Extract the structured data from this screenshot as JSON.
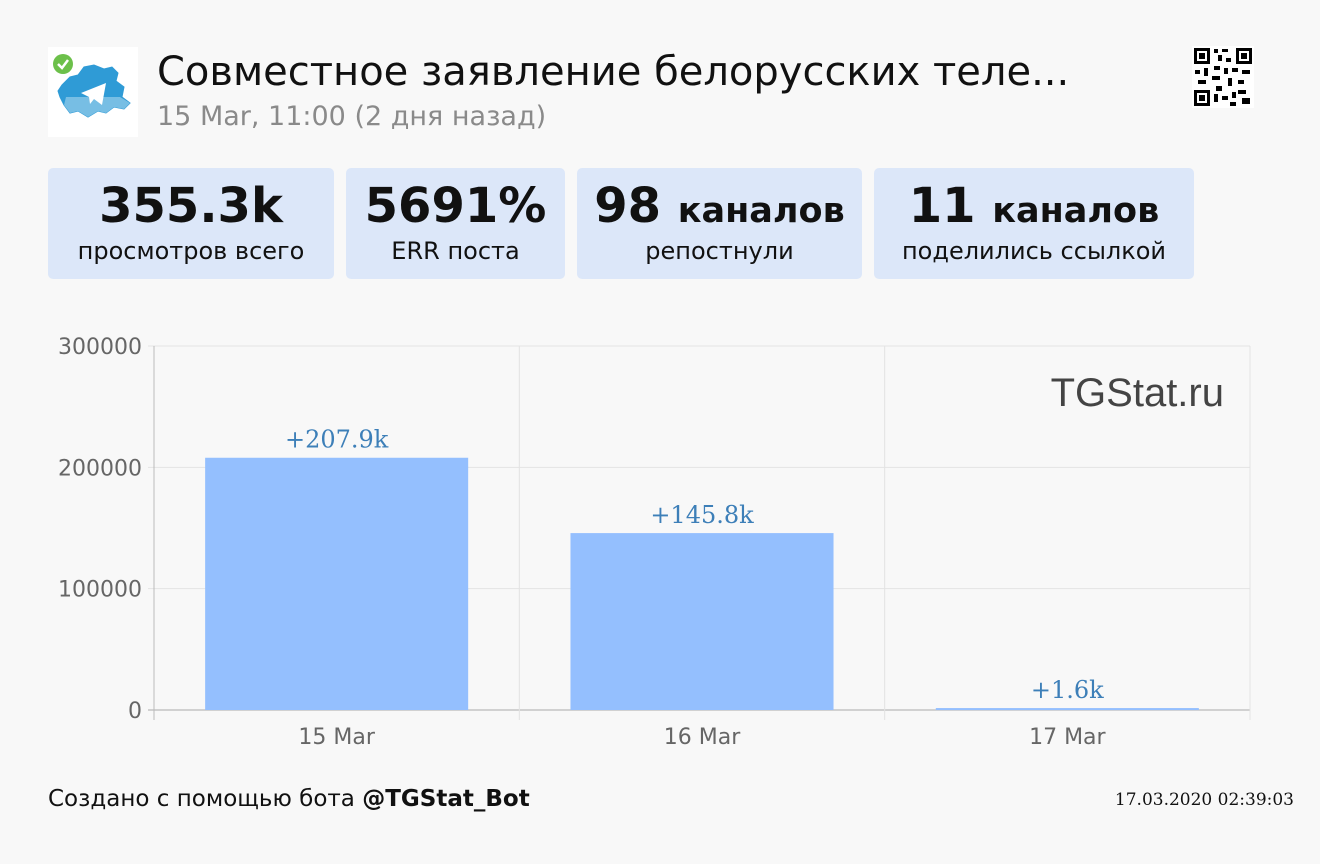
{
  "post": {
    "title": "Совместное заявление белорусских теле...",
    "date": "15 Mar, 11:00 (2 дня назад)",
    "avatar_icon": "belarus-map-telegram-icon",
    "verified_icon": "verified-check-icon",
    "qr_icon": "qr-code-icon"
  },
  "stats": [
    {
      "value": "355.3k",
      "unit": "",
      "label": "просмотров всего"
    },
    {
      "value": "5691%",
      "unit": "",
      "label": "ERR поста"
    },
    {
      "value": "98",
      "unit": "каналов",
      "label": "репостнули"
    },
    {
      "value": "11",
      "unit": "каналов",
      "label": "поделились ссылкой"
    }
  ],
  "chart_data": {
    "type": "bar",
    "categories": [
      "15 Mar",
      "16 Mar",
      "17 Mar"
    ],
    "values": [
      207900,
      145800,
      1600
    ],
    "data_labels": [
      "+207.9k",
      "+145.8k",
      "+1.6k"
    ],
    "yticks": [
      "300000",
      "200000",
      "100000",
      "0"
    ],
    "ylim": [
      0,
      300000
    ],
    "grid": true,
    "watermark": "TGStat.ru",
    "bar_color": "#94bffe",
    "label_color": "#3d7fb8"
  },
  "footer": {
    "created_prefix": "Создано с помощью бота",
    "bot_name": "@TGStat_Bot",
    "timestamp": "17.03.2020 02:39:03"
  }
}
